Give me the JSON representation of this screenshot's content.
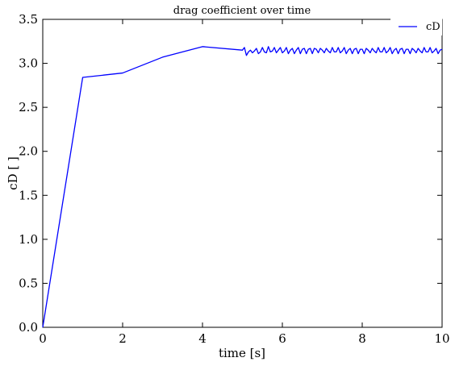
{
  "chart_data": {
    "type": "line",
    "title": "drag coefficient over time",
    "xlabel": "time [s]",
    "ylabel": "cD [ ]",
    "xlim": [
      0,
      10
    ],
    "ylim": [
      0,
      3.5
    ],
    "xticks": [
      0,
      2,
      4,
      6,
      8,
      10
    ],
    "xtick_labels": [
      "0",
      "2",
      "4",
      "6",
      "8",
      "10"
    ],
    "yticks": [
      0,
      0.5,
      1.0,
      1.5,
      2.0,
      2.5,
      3.0,
      3.5
    ],
    "ytick_labels": [
      "0.0",
      "0.5",
      "1.0",
      "1.5",
      "2.0",
      "2.5",
      "3.0",
      "3.5"
    ],
    "grid": false,
    "legend": {
      "position": "top-right",
      "entries": [
        "cD"
      ]
    },
    "series": [
      {
        "name": "cD",
        "color": "#0000ff",
        "points": [
          [
            0,
            0.0
          ],
          [
            1,
            2.84
          ],
          [
            2,
            2.89
          ],
          [
            3,
            3.07
          ],
          [
            4,
            3.19
          ],
          [
            5,
            3.15
          ],
          [
            5.05,
            3.18
          ],
          [
            5.1,
            3.09
          ],
          [
            5.15,
            3.13
          ],
          [
            5.2,
            3.15
          ],
          [
            5.25,
            3.12
          ],
          [
            5.3,
            3.14
          ],
          [
            5.35,
            3.17
          ],
          [
            5.4,
            3.11
          ],
          [
            5.45,
            3.13
          ],
          [
            5.5,
            3.18
          ],
          [
            5.55,
            3.13
          ],
          [
            5.6,
            3.12
          ],
          [
            5.65,
            3.19
          ],
          [
            5.7,
            3.13
          ],
          [
            5.75,
            3.14
          ],
          [
            5.8,
            3.18
          ],
          [
            5.85,
            3.12
          ],
          [
            5.9,
            3.15
          ],
          [
            5.95,
            3.18
          ],
          [
            6.0,
            3.12
          ],
          [
            6.05,
            3.14
          ],
          [
            6.1,
            3.18
          ],
          [
            6.15,
            3.11
          ],
          [
            6.2,
            3.15
          ],
          [
            6.25,
            3.17
          ],
          [
            6.3,
            3.11
          ],
          [
            6.35,
            3.15
          ],
          [
            6.4,
            3.18
          ],
          [
            6.45,
            3.11
          ],
          [
            6.5,
            3.16
          ],
          [
            6.55,
            3.17
          ],
          [
            6.6,
            3.11
          ],
          [
            6.65,
            3.16
          ],
          [
            6.7,
            3.17
          ],
          [
            6.75,
            3.11
          ],
          [
            6.8,
            3.17
          ],
          [
            6.85,
            3.16
          ],
          [
            6.9,
            3.12
          ],
          [
            6.95,
            3.17
          ],
          [
            7.0,
            3.15
          ],
          [
            7.05,
            3.12
          ],
          [
            7.1,
            3.17
          ],
          [
            7.15,
            3.14
          ],
          [
            7.2,
            3.12
          ],
          [
            7.25,
            3.18
          ],
          [
            7.3,
            3.13
          ],
          [
            7.35,
            3.13
          ],
          [
            7.4,
            3.18
          ],
          [
            7.45,
            3.12
          ],
          [
            7.5,
            3.14
          ],
          [
            7.55,
            3.18
          ],
          [
            7.6,
            3.11
          ],
          [
            7.65,
            3.15
          ],
          [
            7.7,
            3.17
          ],
          [
            7.75,
            3.11
          ],
          [
            7.8,
            3.16
          ],
          [
            7.85,
            3.17
          ],
          [
            7.9,
            3.11
          ],
          [
            7.95,
            3.16
          ],
          [
            8.0,
            3.16
          ],
          [
            8.05,
            3.11
          ],
          [
            8.1,
            3.17
          ],
          [
            8.15,
            3.15
          ],
          [
            8.2,
            3.12
          ],
          [
            8.25,
            3.17
          ],
          [
            8.3,
            3.14
          ],
          [
            8.35,
            3.12
          ],
          [
            8.4,
            3.18
          ],
          [
            8.45,
            3.13
          ],
          [
            8.5,
            3.13
          ],
          [
            8.55,
            3.18
          ],
          [
            8.6,
            3.12
          ],
          [
            8.65,
            3.14
          ],
          [
            8.7,
            3.18
          ],
          [
            8.75,
            3.11
          ],
          [
            8.8,
            3.15
          ],
          [
            8.85,
            3.17
          ],
          [
            8.9,
            3.11
          ],
          [
            8.95,
            3.16
          ],
          [
            9.0,
            3.17
          ],
          [
            9.05,
            3.11
          ],
          [
            9.1,
            3.16
          ],
          [
            9.15,
            3.16
          ],
          [
            9.2,
            3.11
          ],
          [
            9.25,
            3.17
          ],
          [
            9.3,
            3.15
          ],
          [
            9.35,
            3.12
          ],
          [
            9.4,
            3.17
          ],
          [
            9.45,
            3.14
          ],
          [
            9.5,
            3.12
          ],
          [
            9.55,
            3.18
          ],
          [
            9.6,
            3.13
          ],
          [
            9.65,
            3.13
          ],
          [
            9.7,
            3.18
          ],
          [
            9.75,
            3.12
          ],
          [
            9.8,
            3.14
          ],
          [
            9.85,
            3.17
          ],
          [
            9.9,
            3.11
          ],
          [
            9.95,
            3.15
          ],
          [
            10.0,
            3.16
          ]
        ]
      }
    ]
  }
}
